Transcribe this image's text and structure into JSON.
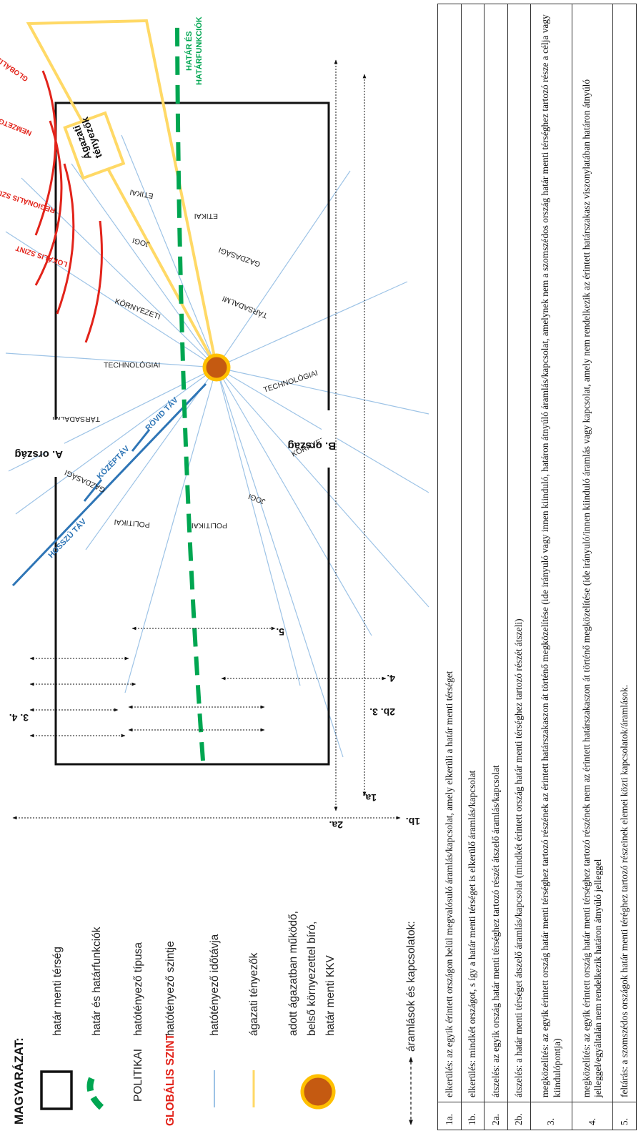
{
  "legend": {
    "title": "MAGYARÁZAT:",
    "items": [
      {
        "key": "hatar-menti-terseg",
        "text": "határ menti térség"
      },
      {
        "key": "hatar-es-hatarfunkciok",
        "text": "határ és határfunkciók"
      },
      {
        "key": "hatotenyezo-tipusa",
        "sample": "POLITIKAI",
        "text": "hatótényező típusa"
      },
      {
        "key": "hatotenyezo-szintje",
        "sample": "GLOBÁLIS SZINT",
        "text": "hatótényező szintje"
      },
      {
        "key": "hatotenyezo-idotavja",
        "text": "hatótényező időtávja"
      },
      {
        "key": "agazati-tenyezok",
        "text": "ágazati tényezők"
      },
      {
        "key": "kkv",
        "lines": [
          "adott ágazatban működő,",
          "belső környezettel bíró,",
          "határ menti KKV"
        ]
      }
    ],
    "flows_label": "áramlások és kapcsolatok:"
  },
  "diagram": {
    "country_a": "A. ország",
    "country_b": "B. ország",
    "time_horizons": [
      "HOSSZÚ TÁV",
      "KÖZÉPTÁV",
      "RÖVID TÁV"
    ],
    "levels": [
      "GLOBÁLIS SZINT",
      "NEMZETGAZDASÁGI SZINT",
      "REGIONÁLIS SZINT",
      "LOKÁLIS SZINT"
    ],
    "factors_a": [
      "TÁRSADALMI",
      "GAZDASÁGI",
      "POLITIKAI",
      "TECHNOLÓGIAI",
      "KÖRNYEZETI",
      "JOGI",
      "ETIKAI"
    ],
    "factors_b": [
      "POLITIKAI",
      "JOGI",
      "KÖRNYEZETI",
      "TECHNOLÓGIAI",
      "TÁRSADALMI",
      "GAZDASÁGI",
      "ETIKAI"
    ],
    "border_label": [
      "HATÁR ÉS",
      "HATÁRFUNKCIÓK"
    ],
    "sectoral_label": [
      "Ágazati",
      "tényezők"
    ],
    "flow_marks": {
      "top": "3.  4.",
      "bottom_a": "2b.  3.",
      "bottom_b": "4.",
      "mid": "5.",
      "m2a": "2a.",
      "m1a": "1a.",
      "m1b": "1b."
    },
    "colors": {
      "red": "#e2231a",
      "green": "#00a651",
      "blue": "#2e75b6",
      "light_blue": "#9dc3e6",
      "yellow": "#ffd966",
      "orange": "#c55a11"
    }
  },
  "table": [
    {
      "code": "1a.",
      "text": "elkerülés: az egyik érintett országon belül megvalósuló áramlás/kapcsolat, amely elkerüli a határ menti térséget"
    },
    {
      "code": "1b.",
      "text": "elkerülés: mindkét országot, s így a határ menti térséget is elkerülő áramlás/kapcsolat"
    },
    {
      "code": "2a.",
      "text": "átszelés: az egyik ország határ menti térséghez tartozó részét átszelő áramlás/kapcsolat"
    },
    {
      "code": "2b.",
      "text": "átszelés: a határ menti térséget átszelő áramlás/kapcsolat (mindkét érintett ország határ menti térséghez tartozó részét átszeli)"
    },
    {
      "code": "3.",
      "text": "megközelítés: az egyik érintett ország határ menti térséghez tartozó részének az érintett határszakaszon át történő megközelítése (ide irányuló vagy innen kiinduló, határon átnyúló áramlás/kapcsolat, amelynek nem a szomszédos ország határ menti térséghez tartozó része a célja vagy kiindulópontja)"
    },
    {
      "code": "4.",
      "text": "megközelítés: az egyik érintett ország határ menti térséghez tartozó részének nem az érintett határszakaszon át történő megközelítése (ide irányuló/innen kiinduló áramlás vagy kapcsolat, amely nem rendelkezik az érintett határszakasz viszonylatában határon átnyúló jelleggel/egyáltalán nem rendelkezik határon átnyúló jelleggel"
    },
    {
      "code": "5.",
      "text": "feltárás: a szomszédos országok határ menti téréghez tartozó részeinek elemei közti kapcsolatok/áramlások."
    }
  ]
}
